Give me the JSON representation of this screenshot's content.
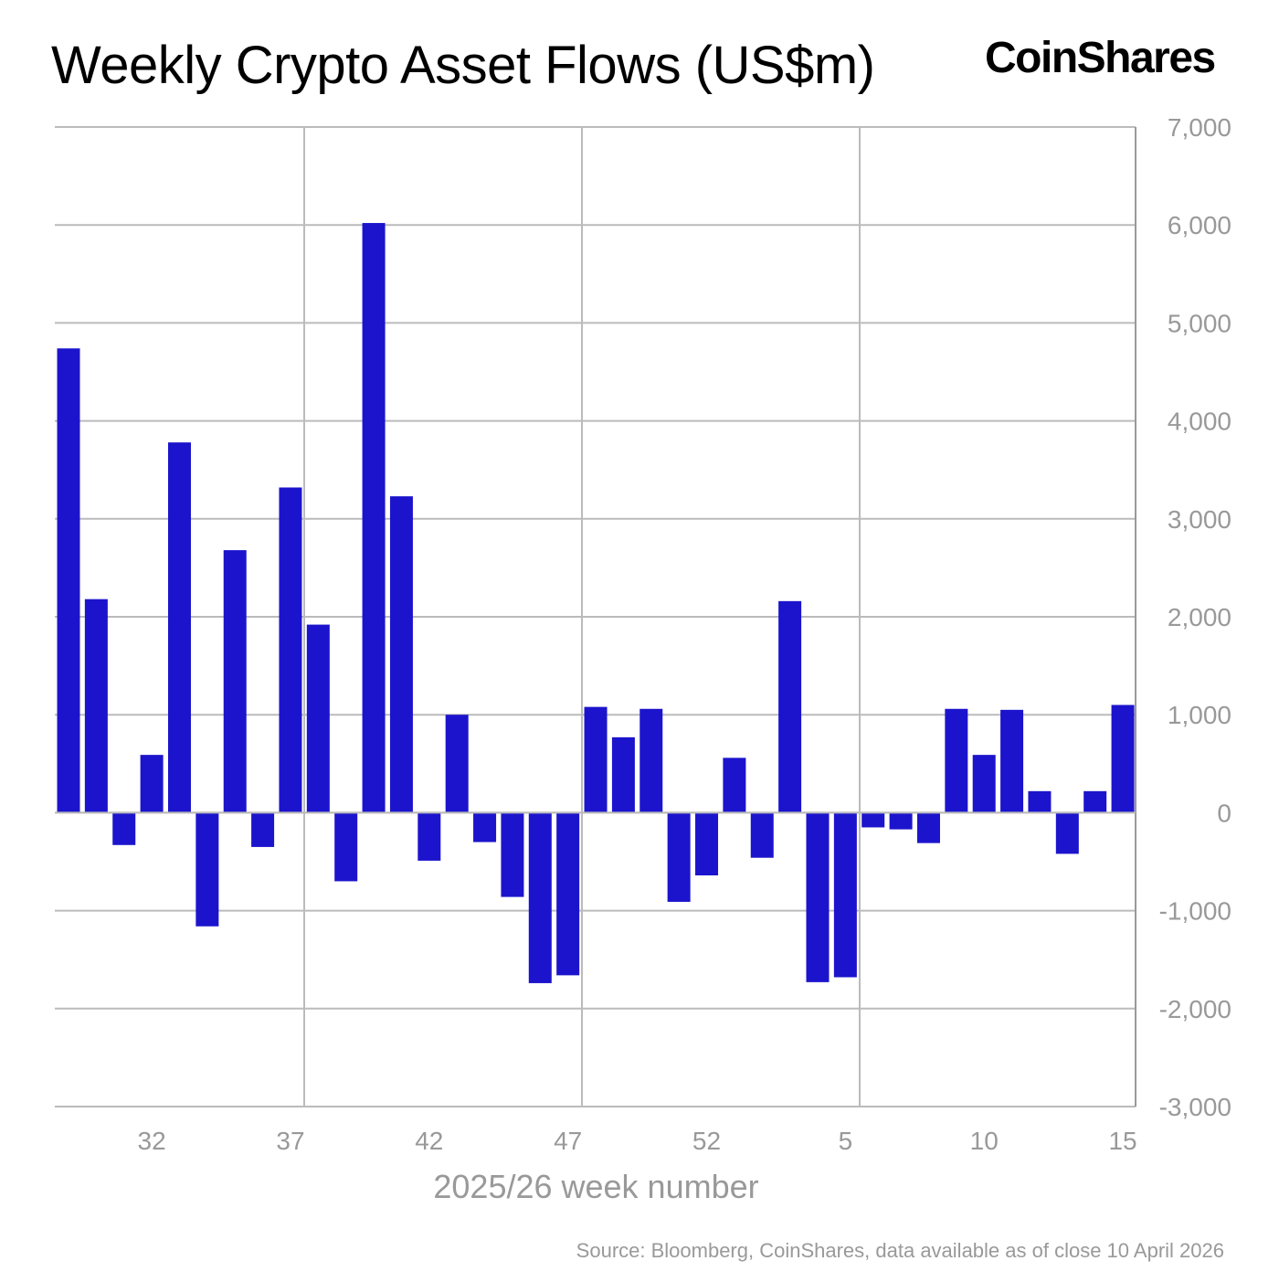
{
  "chart_data": {
    "type": "bar",
    "title": "Weekly Crypto Asset Flows (US$m)",
    "xlabel": "2025/26 week number",
    "ylabel": "",
    "ylim": [
      -3000,
      7000
    ],
    "yticks": [
      -3000,
      -2000,
      -1000,
      0,
      1000,
      2000,
      3000,
      4000,
      5000,
      6000,
      7000
    ],
    "ytick_labels": [
      "-3,000",
      "-2,000",
      "-1,000",
      "0",
      "1,000",
      "2,000",
      "3,000",
      "4,000",
      "5,000",
      "6,000",
      "7,000"
    ],
    "y_axis_side": "right",
    "grid": true,
    "xtick_labels": [
      "32",
      "37",
      "42",
      "47",
      "52",
      "5",
      "10",
      "15"
    ],
    "categories": [
      "29",
      "30",
      "31",
      "32",
      "33",
      "34",
      "35",
      "36",
      "37",
      "38",
      "39",
      "40",
      "41",
      "42",
      "43",
      "44",
      "45",
      "46",
      "47",
      "48",
      "49",
      "50",
      "51",
      "52",
      "1",
      "2",
      "3",
      "4",
      "5",
      "6",
      "7",
      "8",
      "9",
      "10",
      "11",
      "12",
      "13",
      "14",
      "15"
    ],
    "values": [
      4740,
      2180,
      -330,
      590,
      3780,
      -1160,
      2680,
      -350,
      3320,
      1920,
      -700,
      6020,
      3230,
      -490,
      1000,
      -300,
      -860,
      -1740,
      -1660,
      1080,
      770,
      1060,
      -910,
      -640,
      560,
      -460,
      2160,
      -1730,
      -1680,
      -150,
      -170,
      -310,
      1060,
      590,
      1050,
      220,
      -420,
      220,
      1100
    ],
    "bar_color": "#1c14cc"
  },
  "logo": "CoinShares",
  "source": "Source: Bloomberg, CoinShares, data available as of close 10 April 2026"
}
